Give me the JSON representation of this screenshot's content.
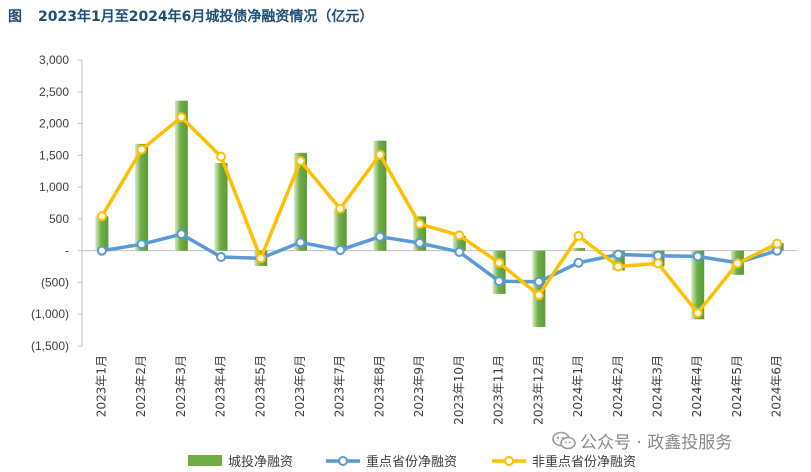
{
  "figure": {
    "label": "图",
    "title": "2023年1月至2024年6月城投债净融资情况（亿元）"
  },
  "watermark": {
    "text": "公众号 · 政鑫投服务",
    "icon": "wechat-icon"
  },
  "colors": {
    "bar": "#70ad47",
    "key_line": "#5b9bd5",
    "nonkey_line": "#ffc000",
    "title": "#1f4e79"
  },
  "chart_data": {
    "type": "bar",
    "categories": [
      "2023年1月",
      "2023年2月",
      "2023年3月",
      "2023年4月",
      "2023年5月",
      "2023年6月",
      "2023年7月",
      "2023年8月",
      "2023年9月",
      "2023年10月",
      "2023年11月",
      "2023年12月",
      "2024年1月",
      "2024年2月",
      "2024年3月",
      "2024年4月",
      "2024年5月",
      "2024年6月"
    ],
    "series": [
      {
        "name": "城投净融资",
        "type": "bar",
        "color": "#70ad47",
        "values": [
          540,
          1680,
          2360,
          1380,
          -240,
          1540,
          660,
          1730,
          540,
          230,
          -680,
          -1200,
          40,
          -310,
          -250,
          -1080,
          -380,
          120
        ]
      },
      {
        "name": "重点省份净融资",
        "type": "line",
        "color": "#5b9bd5",
        "values": [
          0,
          100,
          260,
          -100,
          -120,
          130,
          10,
          220,
          120,
          -20,
          -480,
          -490,
          -190,
          -60,
          -80,
          -90,
          -190,
          0
        ]
      },
      {
        "name": "非重点省份净融资",
        "type": "line",
        "color": "#ffc000",
        "values": [
          540,
          1590,
          2100,
          1480,
          -120,
          1410,
          660,
          1510,
          420,
          240,
          -190,
          -700,
          230,
          -250,
          -200,
          -980,
          -200,
          110
        ]
      }
    ],
    "ylim": [
      -1500,
      3000
    ],
    "yticks": [
      -1500,
      -1000,
      -500,
      0,
      500,
      1000,
      1500,
      2000,
      2500,
      3000
    ],
    "ytick_labels": [
      "(1,500)",
      "(1,000)",
      "(500)",
      "-",
      "500",
      "1,000",
      "1,500",
      "2,000",
      "2,500",
      "3,000"
    ],
    "grid": false,
    "legend_position": "bottom"
  }
}
